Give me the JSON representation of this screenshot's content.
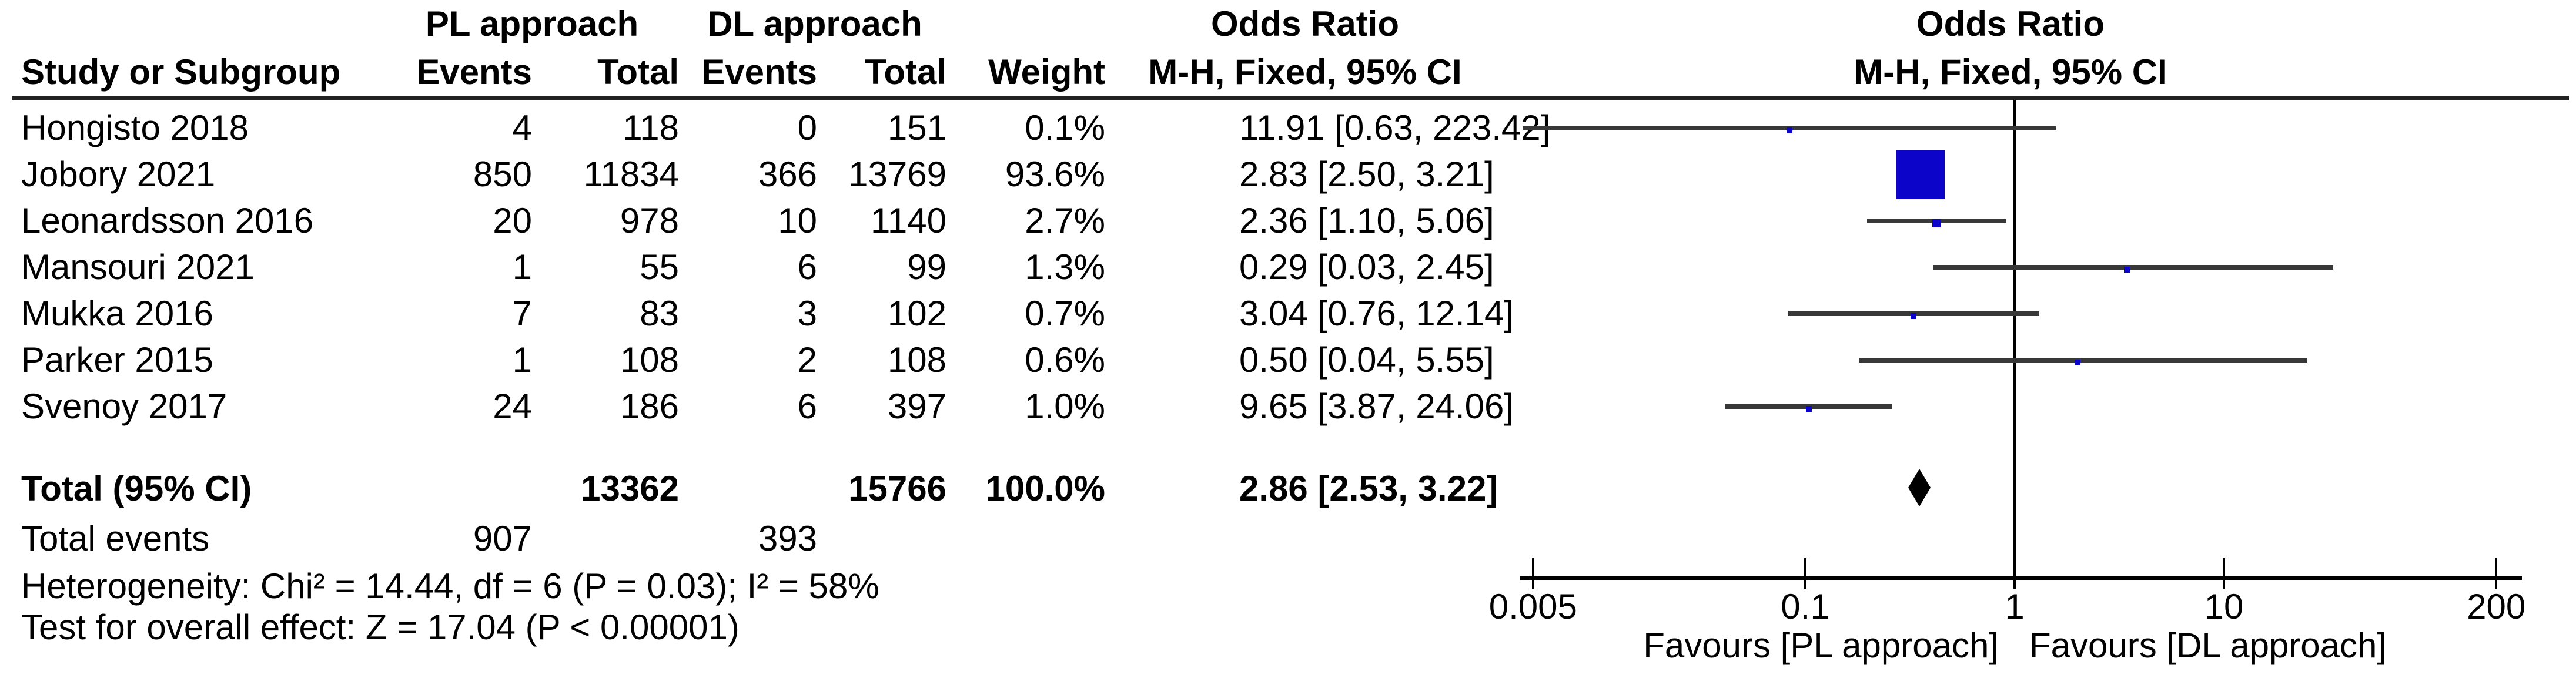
{
  "figure": {
    "header": {
      "group_pl": "PL approach",
      "group_dl": "DL approach",
      "or_left": "Odds Ratio",
      "or_right": "Odds Ratio",
      "mh_left": "M-H, Fixed, 95% CI",
      "mh_right": "M-H, Fixed, 95% CI",
      "study": "Study or Subgroup",
      "events_pl": "Events",
      "total_pl": "Total",
      "events_dl": "Events",
      "total_dl": "Total",
      "weight": "Weight"
    },
    "footer": {
      "total_label": "Total (95% CI)",
      "total_events_label": "Total events",
      "heterogeneity": "Heterogeneity: Chi² = 14.44, df = 6 (P = 0.03); I² = 58%",
      "overall_effect": "Test for overall effect: Z = 17.04 (P < 0.00001)"
    },
    "colors": {
      "marker_blue": "#0c04c8",
      "ci_line": "#383838",
      "diamond": "#000000"
    }
  },
  "chart_data": {
    "type": "forest",
    "effect_measure": "Odds Ratio (M-H, Fixed, 95% CI)",
    "x_scale": "log",
    "x_ticks": [
      0.005,
      0.1,
      1,
      10,
      200
    ],
    "x_tick_labels": [
      "0.005",
      "0.1",
      "1",
      "10",
      "200"
    ],
    "x_range": [
      0.005,
      200
    ],
    "favours_left": "Favours [PL approach]",
    "favours_right": "Favours [DL approach]",
    "markers_drawn_at_reciprocal": true,
    "studies": [
      {
        "name": "Hongisto 2018",
        "pl_events": "4",
        "pl_total": "118",
        "dl_events": "0",
        "dl_total": "151",
        "weight": "0.1%",
        "weight_pct": 0.1,
        "or": 11.91,
        "ci_low": 0.63,
        "ci_high": 223.42,
        "or_text": "11.91 [0.63, 223.42]"
      },
      {
        "name": "Jobory 2021",
        "pl_events": "850",
        "pl_total": "11834",
        "dl_events": "366",
        "dl_total": "13769",
        "weight": "93.6%",
        "weight_pct": 93.6,
        "or": 2.83,
        "ci_low": 2.5,
        "ci_high": 3.21,
        "or_text": "2.83 [2.50, 3.21]"
      },
      {
        "name": "Leonardsson 2016",
        "pl_events": "20",
        "pl_total": "978",
        "dl_events": "10",
        "dl_total": "1140",
        "weight": "2.7%",
        "weight_pct": 2.7,
        "or": 2.36,
        "ci_low": 1.1,
        "ci_high": 5.06,
        "or_text": "2.36 [1.10, 5.06]"
      },
      {
        "name": "Mansouri 2021",
        "pl_events": "1",
        "pl_total": "55",
        "dl_events": "6",
        "dl_total": "99",
        "weight": "1.3%",
        "weight_pct": 1.3,
        "or": 0.29,
        "ci_low": 0.03,
        "ci_high": 2.45,
        "or_text": "0.29 [0.03, 2.45]"
      },
      {
        "name": "Mukka 2016",
        "pl_events": "7",
        "pl_total": "83",
        "dl_events": "3",
        "dl_total": "102",
        "weight": "0.7%",
        "weight_pct": 0.7,
        "or": 3.04,
        "ci_low": 0.76,
        "ci_high": 12.14,
        "or_text": "3.04 [0.76, 12.14]"
      },
      {
        "name": "Parker 2015",
        "pl_events": "1",
        "pl_total": "108",
        "dl_events": "2",
        "dl_total": "108",
        "weight": "0.6%",
        "weight_pct": 0.6,
        "or": 0.5,
        "ci_low": 0.04,
        "ci_high": 5.55,
        "or_text": "0.50 [0.04, 5.55]"
      },
      {
        "name": "Svenoy 2017",
        "pl_events": "24",
        "pl_total": "186",
        "dl_events": "6",
        "dl_total": "397",
        "weight": "1.0%",
        "weight_pct": 1.0,
        "or": 9.65,
        "ci_low": 3.87,
        "ci_high": 24.06,
        "or_text": "9.65 [3.87, 24.06]"
      }
    ],
    "total": {
      "pl_total": "13362",
      "dl_total": "15766",
      "weight": "100.0%",
      "or": 2.86,
      "ci_low": 2.53,
      "ci_high": 3.22,
      "or_text": "2.86 [2.53, 3.22]",
      "pl_events": "907",
      "dl_events": "393"
    }
  }
}
